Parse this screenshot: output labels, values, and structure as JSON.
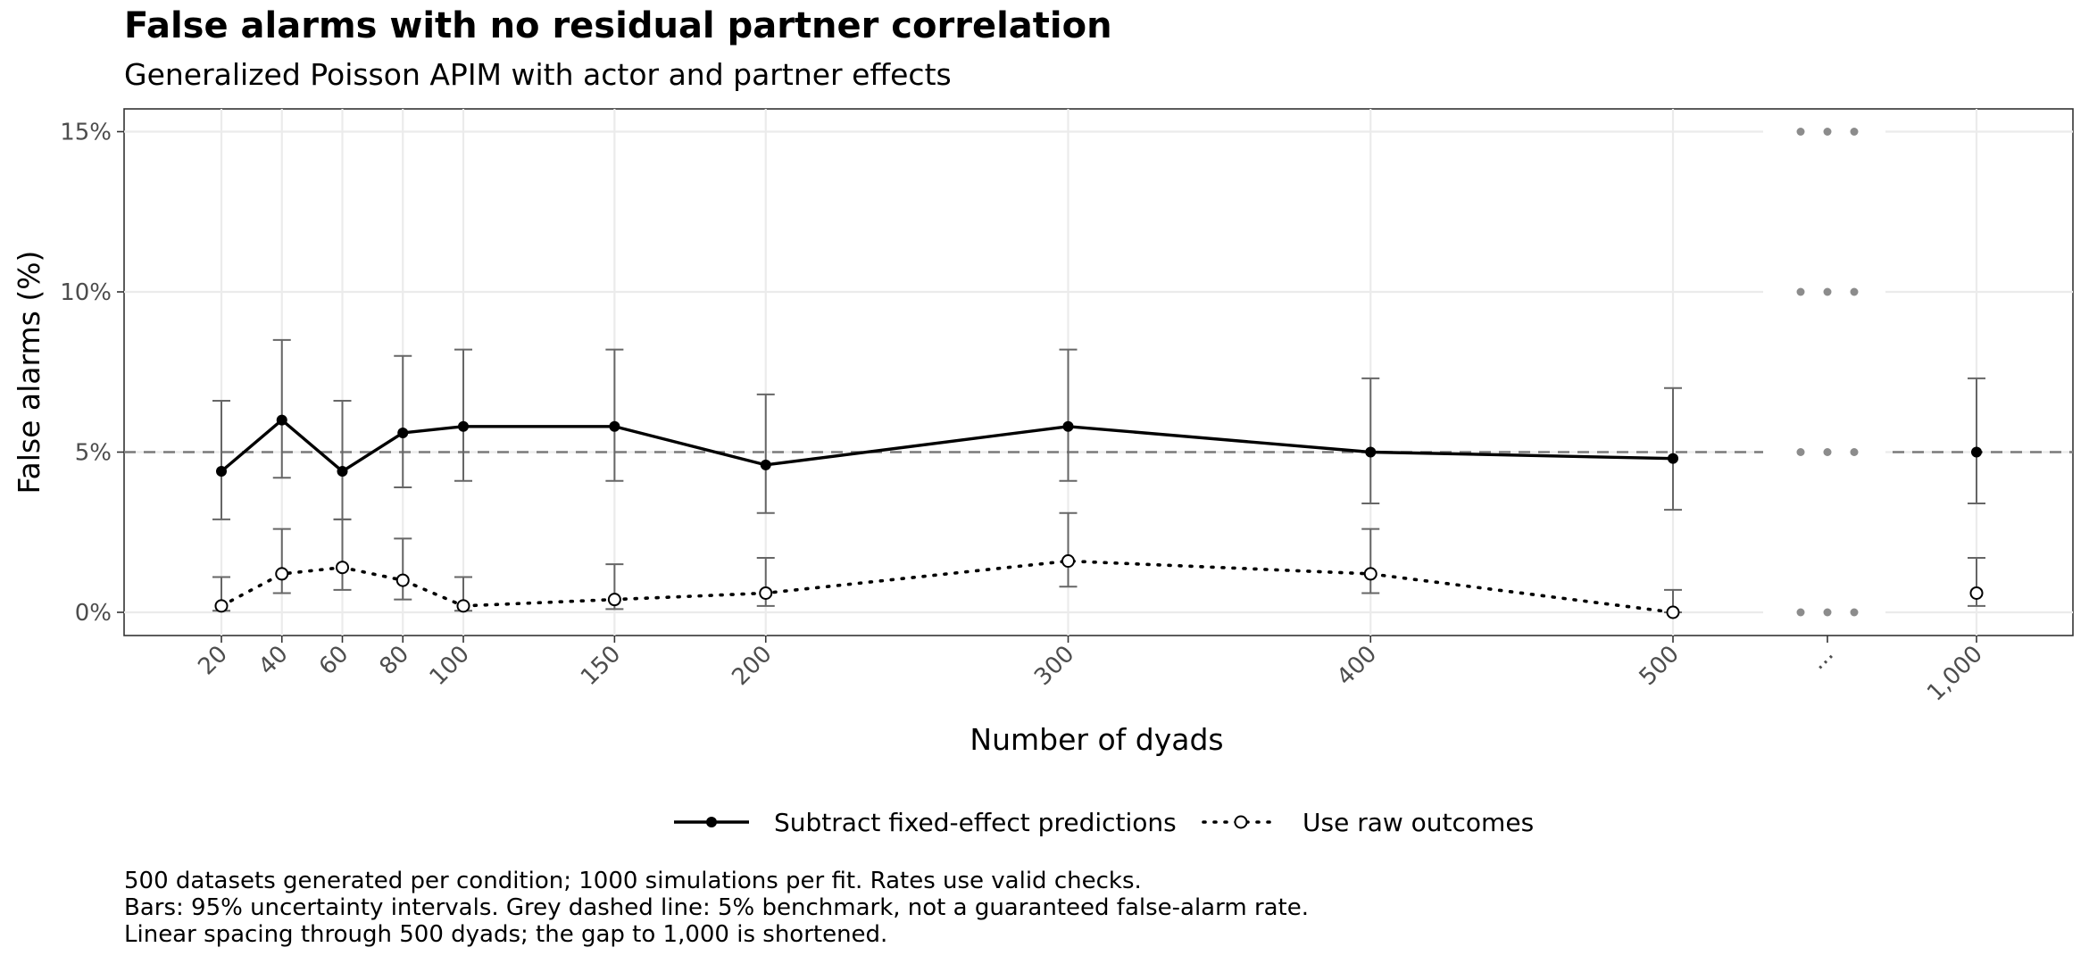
{
  "chart_data": {
    "type": "line",
    "title": "False alarms with no residual partner correlation",
    "subtitle": "Generalized Poisson APIM with actor and partner effects",
    "xlabel": "Number of dyads",
    "ylabel": "False alarms (%)",
    "x": [
      20,
      40,
      60,
      80,
      100,
      150,
      200,
      300,
      400,
      500,
      1000
    ],
    "x_tick_labels": [
      "20",
      "40",
      "60",
      "80",
      "100",
      "150",
      "200",
      "300",
      "400",
      "500",
      "...",
      "1,000"
    ],
    "y_tick_labels": [
      "0%",
      "5%",
      "10%",
      "15%"
    ],
    "ylim": [
      -0.7,
      15.8
    ],
    "axis_break": {
      "after": 500,
      "before": 1000,
      "label": "..."
    },
    "benchmark": {
      "value": 5,
      "style": "grey dashed"
    },
    "grid": true,
    "legend_position": "bottom",
    "series": [
      {
        "name": "Subtract fixed-effect predictions",
        "line": "solid",
        "marker": "filled circle",
        "color": "#000000",
        "values": [
          4.4,
          6.0,
          4.4,
          5.6,
          5.8,
          5.8,
          4.6,
          5.8,
          5.0,
          4.8,
          5.0
        ],
        "lower": [
          2.9,
          4.2,
          2.9,
          3.9,
          4.1,
          4.1,
          3.1,
          4.1,
          3.4,
          3.2,
          3.4
        ],
        "upper": [
          6.6,
          8.5,
          6.6,
          8.0,
          8.2,
          8.2,
          6.8,
          8.2,
          7.3,
          7.0,
          7.3
        ]
      },
      {
        "name": "Use raw outcomes",
        "line": "dotted",
        "marker": "open circle",
        "color": "#000000",
        "values": [
          0.2,
          1.2,
          1.4,
          1.0,
          0.2,
          0.4,
          0.6,
          1.6,
          1.2,
          0.0,
          0.6
        ],
        "lower": [
          0.05,
          0.6,
          0.7,
          0.4,
          0.05,
          0.1,
          0.2,
          0.8,
          0.6,
          0.0,
          0.2
        ],
        "upper": [
          1.1,
          2.6,
          2.9,
          2.3,
          1.1,
          1.5,
          1.7,
          3.1,
          2.6,
          0.7,
          1.7
        ]
      }
    ]
  },
  "caption": [
    "500 datasets generated per condition; 1000 simulations per fit. Rates use valid checks.",
    "Bars: 95% uncertainty intervals. Grey dashed line: 5% benchmark, not a guaranteed false-alarm rate.",
    "Linear spacing through 500 dyads; the gap to 1,000 is shortened."
  ]
}
